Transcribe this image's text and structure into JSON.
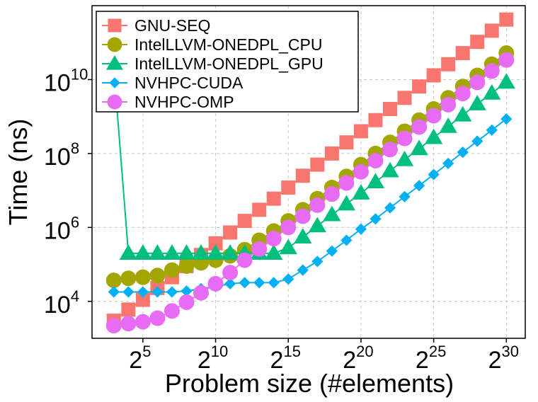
{
  "chart_data": {
    "type": "line",
    "xlabel": "Problem size (#elements)",
    "ylabel": "Time (ns)",
    "x_scale": "log2",
    "y_scale": "log10",
    "xlim_exponent": [
      1.5,
      31.3
    ],
    "ylim": [
      1000,
      1000000000000
    ],
    "grid": true,
    "legend_position": "top-left",
    "x_ticks": [
      {
        "base": "2",
        "exp": "5",
        "value": 32
      },
      {
        "base": "2",
        "exp": "10",
        "value": 1024
      },
      {
        "base": "2",
        "exp": "15",
        "value": 32768
      },
      {
        "base": "2",
        "exp": "20",
        "value": 1048576
      },
      {
        "base": "2",
        "exp": "25",
        "value": 33554432
      },
      {
        "base": "2",
        "exp": "30",
        "value": 1073741824
      }
    ],
    "y_ticks": [
      {
        "base": "10",
        "exp": "4",
        "value": 10000
      },
      {
        "base": "10",
        "exp": "6",
        "value": 1000000
      },
      {
        "base": "10",
        "exp": "8",
        "value": 100000000
      },
      {
        "base": "10",
        "exp": "10",
        "value": 10000000000
      }
    ],
    "x_exponents": [
      3,
      4,
      5,
      6,
      7,
      8,
      9,
      10,
      11,
      12,
      13,
      14,
      15,
      16,
      17,
      18,
      19,
      20,
      21,
      22,
      23,
      24,
      25,
      26,
      27,
      28,
      29,
      30
    ],
    "series": [
      {
        "name": "GNU-SEQ",
        "color": "#F8766D",
        "marker": "square",
        "values": [
          3000,
          6000,
          11000,
          23000,
          45000,
          90000,
          180000,
          370000,
          730000,
          1500000,
          3000000,
          6000000,
          12000000,
          25000000,
          50000000,
          100000000,
          200000000,
          400000000,
          800000000,
          1600000000,
          3200000000,
          6500000000,
          13000000000,
          26000000000,
          52000000000,
          105000000000,
          210000000000,
          420000000000
        ]
      },
      {
        "name": "IntelLLVM-ONEDPL_CPU",
        "color": "#A3A500",
        "marker": "circle",
        "values": [
          37000,
          42000,
          45000,
          50000,
          70000,
          90000,
          110000,
          130000,
          170000,
          250000,
          450000,
          800000,
          1500000,
          3000000,
          6000000,
          12000000,
          24000000,
          50000000,
          100000000,
          200000000,
          400000000,
          800000000,
          1600000000,
          3200000000,
          6500000000,
          13000000000,
          26000000000,
          52000000000
        ]
      },
      {
        "name": "IntelLLVM-ONEDPL_GPU",
        "color": "#00BF7D",
        "marker": "triangle",
        "values": [
          20000000000,
          200000,
          200000,
          200000,
          200000,
          200000,
          200000,
          200000,
          200000,
          200000,
          200000,
          200000,
          280000,
          550000,
          1100000,
          2200000,
          4300000,
          8500000,
          17000000,
          34000000,
          68000000,
          135000000,
          270000000,
          540000000,
          1100000000,
          2200000000,
          4300000000,
          8500000000
        ]
      },
      {
        "name": "NVHPC-CUDA",
        "color": "#00B0F6",
        "marker": "diamond",
        "values": [
          18000,
          18000,
          18000,
          18000,
          18000,
          19000,
          22000,
          25000,
          30000,
          32000,
          32000,
          32000,
          40000,
          70000,
          120000,
          230000,
          450000,
          900000,
          1700000,
          3400000,
          6800000,
          13500000,
          27000000,
          54000000,
          108000000,
          215000000,
          430000000,
          860000000
        ]
      },
      {
        "name": "NVHPC-OMP",
        "color": "#E76BF3",
        "marker": "circle",
        "values": [
          2200,
          2500,
          2800,
          3500,
          5500,
          9500,
          17000,
          30000,
          60000,
          130000,
          260000,
          500000,
          1000000,
          2000000,
          4000000,
          8000000,
          16000000,
          32000000,
          64000000,
          128000000,
          256000000,
          520000000,
          1050000000,
          2100000000,
          4200000000,
          8400000000,
          17000000000,
          34000000000
        ]
      }
    ]
  }
}
